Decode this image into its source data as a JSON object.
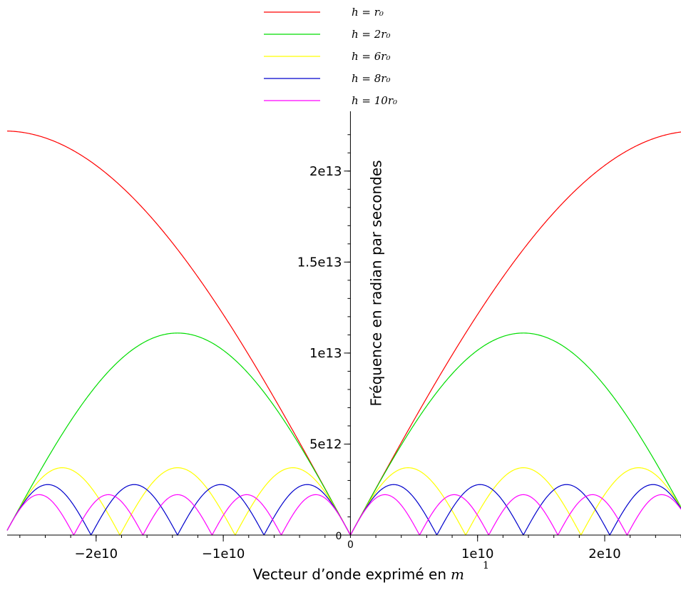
{
  "chart_data": {
    "type": "line",
    "xlabel": "Vecteur d’onde exprimé en",
    "xlabel_unit": "m",
    "xlabel_exponent": "1",
    "ylabel": "Fréquence en radian par secondes",
    "xlim": [
      -27000000000.0,
      26000000000.0
    ],
    "ylim": [
      0,
      22500000000000.0
    ],
    "x_ticks": [
      {
        "value": -20000000000.0,
        "label": "−2e10"
      },
      {
        "value": -10000000000.0,
        "label": "−1e10"
      },
      {
        "value": 10000000000.0,
        "label": "1e10"
      },
      {
        "value": 20000000000.0,
        "label": "2e10"
      }
    ],
    "x_origin_label": "0",
    "y_ticks": [
      {
        "value": 0,
        "label": "0"
      },
      {
        "value": 5000000000000.0,
        "label": "5e12"
      },
      {
        "value": 10000000000000.0,
        "label": "1e13"
      },
      {
        "value": 15000000000000.0,
        "label": "1.5e13"
      },
      {
        "value": 20000000000000.0,
        "label": "2e13"
      }
    ],
    "legend_position": "top-center",
    "series": [
      {
        "name": "h = r₀",
        "color": "#ff0000",
        "n": 1,
        "omega_max": 22200000000000.0,
        "x": [
          0,
          5000000000.0,
          10000000000.0,
          15000000000.0,
          20000000000.0,
          25000000000.0,
          27200000000.0
        ],
        "y": [
          0,
          6300000000000.0,
          12400000000000.0,
          17300000000000.0,
          20500000000000.0,
          22150000000000.0,
          22200000000000.0
        ]
      },
      {
        "name": "h = 2r₀",
        "color": "#00dd00",
        "n": 2,
        "omega_max": 11100000000000.0,
        "x": [
          0,
          3400000000.0,
          6800000000.0,
          10200000000.0,
          13600000000.0,
          17000000000.0,
          20400000000.0,
          23800000000.0,
          27200000000.0
        ],
        "y": [
          0,
          4250000000000.0,
          7850000000000.0,
          10260000000000.0,
          11100000000000.0,
          10260000000000.0,
          7850000000000.0,
          4250000000000.0,
          0
        ]
      },
      {
        "name": "h = 6r₀",
        "color": "#ffff00",
        "n": 6,
        "omega_max": 3700000000000.0,
        "x": [
          0,
          2270000000.0,
          4530000000.0,
          6800000000.0,
          9070000000.0,
          13600000000.0,
          18100000000.0,
          22700000000.0,
          27200000000.0
        ],
        "y": [
          0,
          2620000000000.0,
          3700000000000.0,
          2620000000000.0,
          0,
          3700000000000.0,
          0,
          3700000000000.0,
          0
        ]
      },
      {
        "name": "h = 8r₀",
        "color": "#0000cc",
        "n": 8,
        "omega_max": 2775000000000.0,
        "x": [
          0,
          1700000000.0,
          3400000000.0,
          6800000000.0,
          10200000000.0,
          13600000000.0,
          17000000000.0,
          20400000000.0,
          23800000000.0,
          27200000000.0
        ],
        "y": [
          0,
          2775000000000.0,
          0,
          2775000000000.0,
          0,
          2775000000000.0,
          0,
          2775000000000.0,
          0,
          2775000000000.0
        ]
      },
      {
        "name": "h = 10r₀",
        "color": "#ff00ff",
        "n": 10,
        "omega_max": 2220000000000.0,
        "x": [
          0,
          1360000000.0,
          2720000000.0,
          5440000000.0,
          8160000000.0,
          10880000000.0,
          13600000000.0,
          16320000000.0,
          19040000000.0,
          21760000000.0,
          24480000000.0,
          27200000000.0
        ],
        "y": [
          0,
          2220000000000.0,
          0,
          0,
          2220000000000.0,
          0,
          0,
          2220000000000.0,
          0,
          0,
          2220000000000.0,
          2220000000000.0
        ]
      }
    ]
  }
}
